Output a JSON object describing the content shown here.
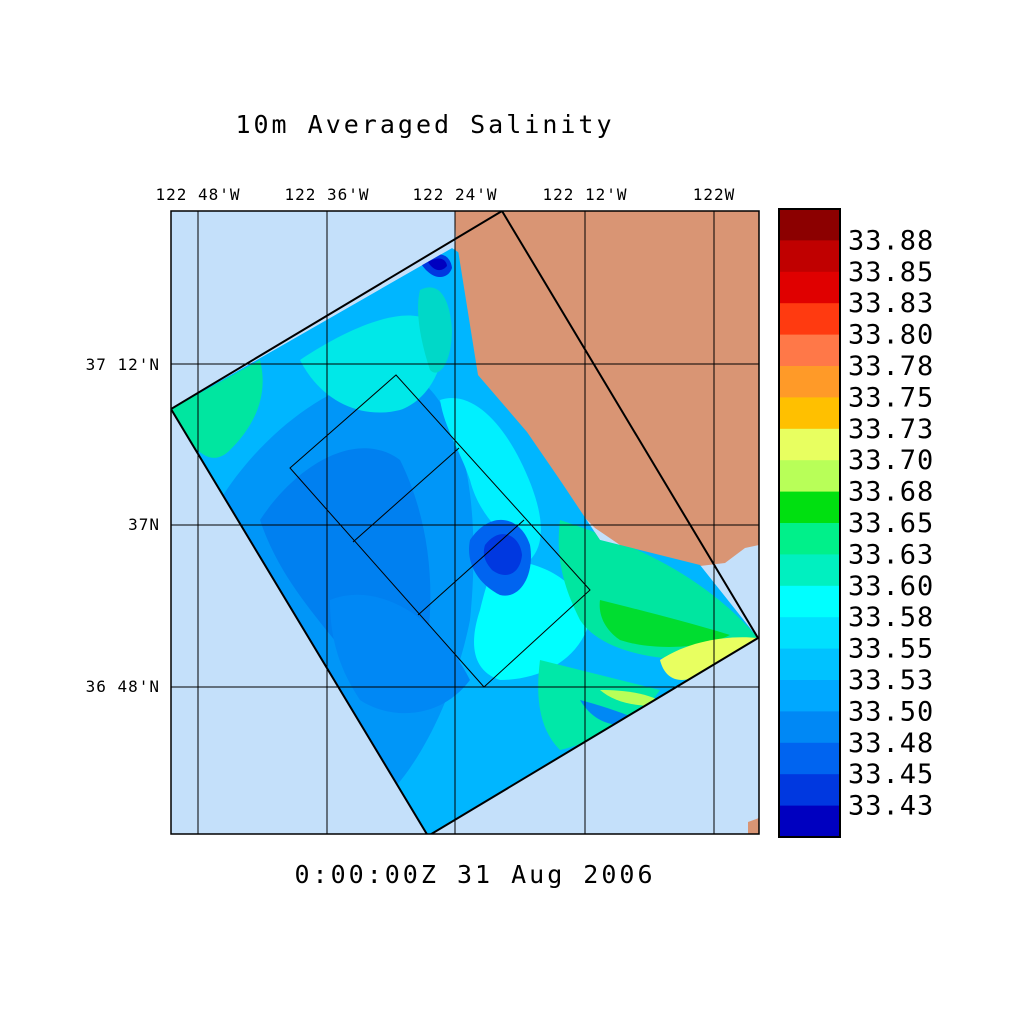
{
  "title": "10m Averaged Salinity",
  "timestamp": "0:00:00Z  31 Aug 2006",
  "longitude_ticks": [
    "122 48'W",
    "122 36'W",
    "122 24'W",
    "122 12'W",
    "122W"
  ],
  "latitude_ticks": [
    "37 12'N",
    "37N",
    "36 48'N"
  ],
  "colors": {
    "ocean_background": "#c4e0fa",
    "land": "#d99574",
    "frame": "#000000"
  },
  "colorbar": {
    "labels": [
      "33.88",
      "33.85",
      "33.83",
      "33.80",
      "33.78",
      "33.75",
      "33.73",
      "33.70",
      "33.68",
      "33.65",
      "33.63",
      "33.60",
      "33.58",
      "33.55",
      "33.53",
      "33.50",
      "33.48",
      "33.45",
      "33.43"
    ],
    "colors": [
      "#8c0000",
      "#c00000",
      "#e00000",
      "#ff3a10",
      "#ff7848",
      "#ff9a28",
      "#ffc000",
      "#e8ff60",
      "#b8ff58",
      "#00e010",
      "#00f08a",
      "#00f0c0",
      "#00ffff",
      "#00e0ff",
      "#00c2ff",
      "#00a8ff",
      "#0088f5",
      "#0064f0",
      "#0038e0",
      "#0000c0"
    ]
  }
}
